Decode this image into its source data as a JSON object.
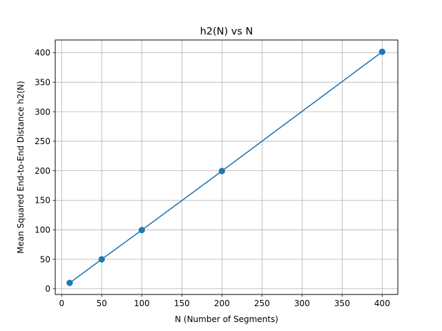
{
  "chart_data": {
    "type": "line",
    "title": "h2(N) vs N",
    "xlabel": "N (Number of Segments)",
    "ylabel": "Mean Squared End-to-End Distance h2(N)",
    "x": [
      10,
      50,
      100,
      200,
      400
    ],
    "series": [
      {
        "values": [
          10,
          50,
          99.5,
          199.5,
          401.5
        ],
        "color": "#1f77b4",
        "marker": "circle"
      }
    ],
    "xlim": [
      -8,
      419.5
    ],
    "ylim": [
      -9.6,
      421.5
    ],
    "xticks": [
      0,
      50,
      100,
      150,
      200,
      250,
      300,
      350,
      400
    ],
    "yticks": [
      0,
      50,
      100,
      150,
      200,
      250,
      300,
      350,
      400
    ],
    "grid": true,
    "grid_color": "#b0b0b0"
  }
}
